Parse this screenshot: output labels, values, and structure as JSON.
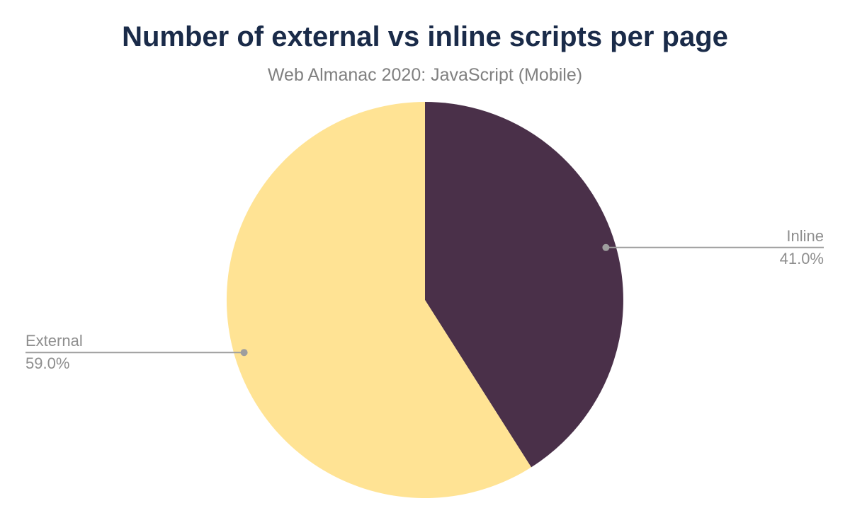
{
  "header": {
    "title": "Number of external vs inline scripts per page",
    "subtitle": "Web Almanac 2020: JavaScript (Mobile)"
  },
  "chart_data": {
    "type": "pie",
    "title": "Number of external vs inline scripts per page",
    "subtitle": "Web Almanac 2020: JavaScript (Mobile)",
    "unit": "percent",
    "start_angle_deg": 0,
    "direction": "clockwise",
    "legend_position": "none",
    "grid": false,
    "slices": [
      {
        "label": "Inline",
        "value": 41.0,
        "display_percent": "41.0%",
        "color": "#4A3049"
      },
      {
        "label": "External",
        "value": 59.0,
        "display_percent": "59.0%",
        "color": "#FFE394"
      }
    ],
    "colors": {
      "title_text": "#1A2B49",
      "subtitle_text": "#808080",
      "callout_text": "#8E8E8E",
      "leader_line": "#9E9E9E",
      "background": "#FFFFFF"
    }
  }
}
